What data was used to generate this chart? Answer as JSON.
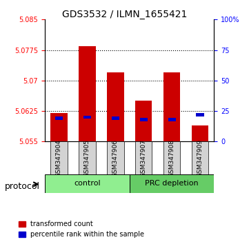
{
  "title": "GDS3532 / ILMN_1655421",
  "samples": [
    "GSM347904",
    "GSM347905",
    "GSM347906",
    "GSM347907",
    "GSM347908",
    "GSM347909"
  ],
  "groups": [
    "control",
    "control",
    "control",
    "PRC depletion",
    "PRC depletion",
    "PRC depletion"
  ],
  "group_labels": [
    "control",
    "PRC depletion"
  ],
  "group_colors": [
    "#90EE90",
    "#66CC66"
  ],
  "bar_bottom": 5.055,
  "transformed_counts": [
    5.062,
    5.0785,
    5.072,
    5.065,
    5.072,
    5.059
  ],
  "percentile_ranks": [
    19,
    20,
    19,
    18,
    18,
    22
  ],
  "percentile_max": 100,
  "ylim": [
    5.055,
    5.085
  ],
  "yticks": [
    5.055,
    5.0625,
    5.07,
    5.0775,
    5.085
  ],
  "ytick_labels": [
    "5.055",
    "5.0625",
    "5.07",
    "5.0775",
    "5.085"
  ],
  "right_yticks": [
    0,
    25,
    50,
    75,
    100
  ],
  "right_ytick_labels": [
    "0",
    "25",
    "50",
    "75",
    "100%"
  ],
  "bar_color": "#CC0000",
  "percentile_color": "#0000CC",
  "background_color": "#ffffff",
  "plot_bg_color": "#ffffff",
  "sample_bg_color": "#d3d3d3",
  "legend_red_label": "transformed count",
  "legend_blue_label": "percentile rank within the sample",
  "protocol_label": "protocol",
  "bar_width": 0.6
}
